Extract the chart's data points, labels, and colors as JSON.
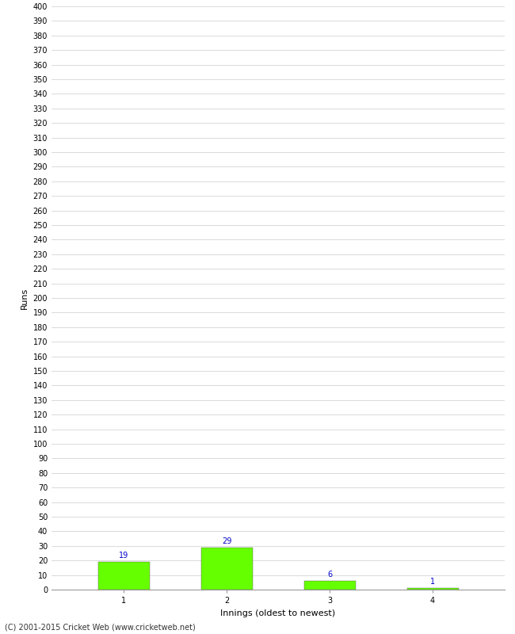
{
  "categories": [
    "1",
    "2",
    "3",
    "4"
  ],
  "values": [
    19,
    29,
    6,
    1
  ],
  "bar_color": "#66ff00",
  "bar_edge_color": "#555555",
  "bar_edge_width": 0.3,
  "xlabel": "Innings (oldest to newest)",
  "ylabel": "Runs",
  "ylim": [
    0,
    400
  ],
  "ytick_step": 10,
  "label_color": "#0000cc",
  "label_fontsize": 7,
  "axis_label_fontsize": 8,
  "tick_fontsize": 7,
  "footer_text": "(C) 2001-2015 Cricket Web (www.cricketweb.net)",
  "footer_fontsize": 7,
  "background_color": "#ffffff",
  "grid_color": "#cccccc",
  "grid_linewidth": 0.5,
  "bar_width": 0.5,
  "spine_color": "#999999",
  "xlim_left": 0.3,
  "xlim_right": 4.7
}
